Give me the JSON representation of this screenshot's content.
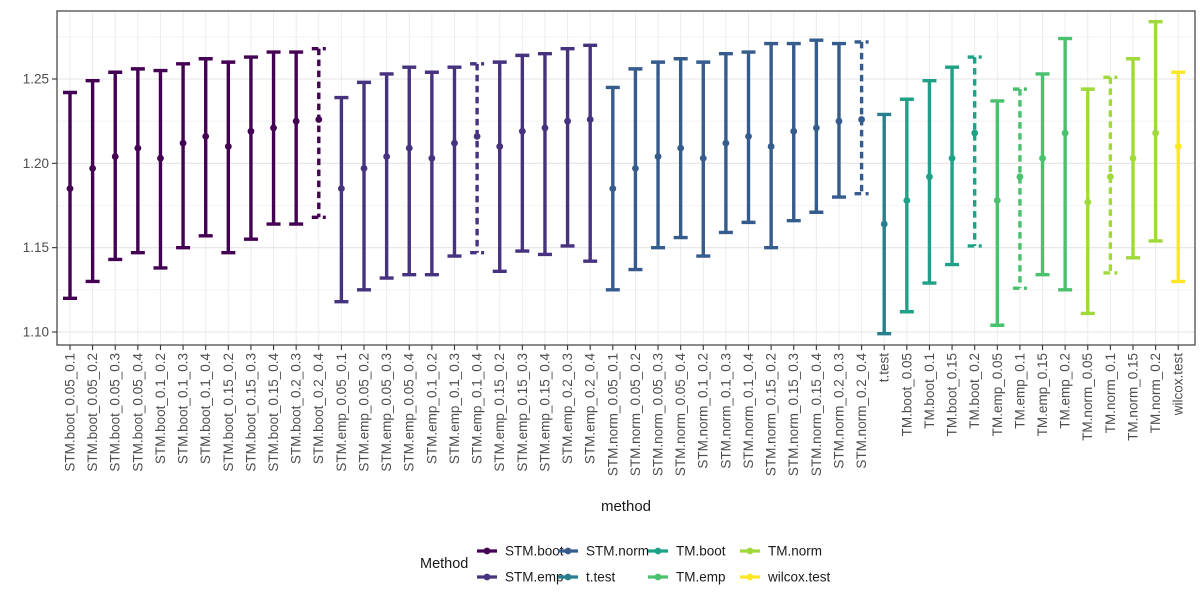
{
  "figure": {
    "background": "#FFFFFF"
  },
  "axes": {
    "x_title": "method",
    "y_major_ticks": [
      {
        "value": 1.1,
        "label": "1.10"
      },
      {
        "value": 1.15,
        "label": "1.15"
      },
      {
        "value": 1.2,
        "label": "1.20"
      },
      {
        "value": 1.25,
        "label": "1.25"
      }
    ],
    "y_minor_ticks": [
      1.125,
      1.175,
      1.225,
      1.275
    ]
  },
  "legend": {
    "title": "Method",
    "entries": [
      {
        "label": "STM.boot",
        "color": "#440154"
      },
      {
        "label": "STM.emp",
        "color": "#46327E"
      },
      {
        "label": "STM.norm",
        "color": "#365C8D"
      },
      {
        "label": "t.test",
        "color": "#277F8E"
      },
      {
        "label": "TM.boot",
        "color": "#1FA187"
      },
      {
        "label": "TM.emp",
        "color": "#4AC16D"
      },
      {
        "label": "TM.norm",
        "color": "#9FDA3A"
      },
      {
        "label": "wilcox.test",
        "color": "#FDE725"
      }
    ]
  },
  "chart_data": {
    "type": "pointrange",
    "title": "",
    "xlabel": "method",
    "ylabel": "",
    "ylim": [
      1.092,
      1.29
    ],
    "grid": true,
    "legend_position": "bottom",
    "groups": [
      {
        "name": "STM.boot",
        "color": "#440154"
      },
      {
        "name": "STM.emp",
        "color": "#46327E"
      },
      {
        "name": "STM.norm",
        "color": "#365C8D"
      },
      {
        "name": "t.test",
        "color": "#277F8E"
      },
      {
        "name": "TM.boot",
        "color": "#1FA187"
      },
      {
        "name": "TM.emp",
        "color": "#4AC16D"
      },
      {
        "name": "TM.norm",
        "color": "#9FDA3A"
      },
      {
        "name": "wilcox.test",
        "color": "#FDE725"
      }
    ],
    "points": [
      {
        "label": "STM.boot_0.05_0.1",
        "group": "STM.boot",
        "estimate": 1.185,
        "lower": 1.12,
        "upper": 1.242,
        "linetype": "solid"
      },
      {
        "label": "STM.boot_0.05_0.2",
        "group": "STM.boot",
        "estimate": 1.197,
        "lower": 1.13,
        "upper": 1.249,
        "linetype": "solid"
      },
      {
        "label": "STM.boot_0.05_0.3",
        "group": "STM.boot",
        "estimate": 1.204,
        "lower": 1.143,
        "upper": 1.254,
        "linetype": "solid"
      },
      {
        "label": "STM.boot_0.05_0.4",
        "group": "STM.boot",
        "estimate": 1.209,
        "lower": 1.147,
        "upper": 1.256,
        "linetype": "solid"
      },
      {
        "label": "STM.boot_0.1_0.2",
        "group": "STM.boot",
        "estimate": 1.203,
        "lower": 1.138,
        "upper": 1.255,
        "linetype": "solid"
      },
      {
        "label": "STM.boot_0.1_0.3",
        "group": "STM.boot",
        "estimate": 1.212,
        "lower": 1.15,
        "upper": 1.259,
        "linetype": "solid"
      },
      {
        "label": "STM.boot_0.1_0.4",
        "group": "STM.boot",
        "estimate": 1.216,
        "lower": 1.157,
        "upper": 1.262,
        "linetype": "solid"
      },
      {
        "label": "STM.boot_0.15_0.2",
        "group": "STM.boot",
        "estimate": 1.21,
        "lower": 1.147,
        "upper": 1.26,
        "linetype": "solid"
      },
      {
        "label": "STM.boot_0.15_0.3",
        "group": "STM.boot",
        "estimate": 1.219,
        "lower": 1.155,
        "upper": 1.263,
        "linetype": "solid"
      },
      {
        "label": "STM.boot_0.15_0.4",
        "group": "STM.boot",
        "estimate": 1.221,
        "lower": 1.164,
        "upper": 1.266,
        "linetype": "solid"
      },
      {
        "label": "STM.boot_0.2_0.3",
        "group": "STM.boot",
        "estimate": 1.225,
        "lower": 1.164,
        "upper": 1.266,
        "linetype": "solid"
      },
      {
        "label": "STM.boot_0.2_0.4",
        "group": "STM.boot",
        "estimate": 1.226,
        "lower": 1.168,
        "upper": 1.268,
        "linetype": "dashed"
      },
      {
        "label": "STM.emp_0.05_0.1",
        "group": "STM.emp",
        "estimate": 1.185,
        "lower": 1.118,
        "upper": 1.239,
        "linetype": "solid"
      },
      {
        "label": "STM.emp_0.05_0.2",
        "group": "STM.emp",
        "estimate": 1.197,
        "lower": 1.125,
        "upper": 1.248,
        "linetype": "solid"
      },
      {
        "label": "STM.emp_0.05_0.3",
        "group": "STM.emp",
        "estimate": 1.204,
        "lower": 1.132,
        "upper": 1.253,
        "linetype": "solid"
      },
      {
        "label": "STM.emp_0.05_0.4",
        "group": "STM.emp",
        "estimate": 1.209,
        "lower": 1.134,
        "upper": 1.257,
        "linetype": "solid"
      },
      {
        "label": "STM.emp_0.1_0.2",
        "group": "STM.emp",
        "estimate": 1.203,
        "lower": 1.134,
        "upper": 1.254,
        "linetype": "solid"
      },
      {
        "label": "STM.emp_0.1_0.3",
        "group": "STM.emp",
        "estimate": 1.212,
        "lower": 1.145,
        "upper": 1.257,
        "linetype": "solid"
      },
      {
        "label": "STM.emp_0.1_0.4",
        "group": "STM.emp",
        "estimate": 1.216,
        "lower": 1.147,
        "upper": 1.259,
        "linetype": "dashed"
      },
      {
        "label": "STM.emp_0.15_0.2",
        "group": "STM.emp",
        "estimate": 1.21,
        "lower": 1.136,
        "upper": 1.26,
        "linetype": "solid"
      },
      {
        "label": "STM.emp_0.15_0.3",
        "group": "STM.emp",
        "estimate": 1.219,
        "lower": 1.148,
        "upper": 1.264,
        "linetype": "solid"
      },
      {
        "label": "STM.emp_0.15_0.4",
        "group": "STM.emp",
        "estimate": 1.221,
        "lower": 1.146,
        "upper": 1.265,
        "linetype": "solid"
      },
      {
        "label": "STM.emp_0.2_0.3",
        "group": "STM.emp",
        "estimate": 1.225,
        "lower": 1.151,
        "upper": 1.268,
        "linetype": "solid"
      },
      {
        "label": "STM.emp_0.2_0.4",
        "group": "STM.emp",
        "estimate": 1.226,
        "lower": 1.142,
        "upper": 1.27,
        "linetype": "solid"
      },
      {
        "label": "STM.norm_0.05_0.1",
        "group": "STM.norm",
        "estimate": 1.185,
        "lower": 1.125,
        "upper": 1.245,
        "linetype": "solid"
      },
      {
        "label": "STM.norm_0.05_0.2",
        "group": "STM.norm",
        "estimate": 1.197,
        "lower": 1.137,
        "upper": 1.256,
        "linetype": "solid"
      },
      {
        "label": "STM.norm_0.05_0.3",
        "group": "STM.norm",
        "estimate": 1.204,
        "lower": 1.15,
        "upper": 1.26,
        "linetype": "solid"
      },
      {
        "label": "STM.norm_0.05_0.4",
        "group": "STM.norm",
        "estimate": 1.209,
        "lower": 1.156,
        "upper": 1.262,
        "linetype": "solid"
      },
      {
        "label": "STM.norm_0.1_0.2",
        "group": "STM.norm",
        "estimate": 1.203,
        "lower": 1.145,
        "upper": 1.26,
        "linetype": "solid"
      },
      {
        "label": "STM.norm_0.1_0.3",
        "group": "STM.norm",
        "estimate": 1.212,
        "lower": 1.159,
        "upper": 1.265,
        "linetype": "solid"
      },
      {
        "label": "STM.norm_0.1_0.4",
        "group": "STM.norm",
        "estimate": 1.216,
        "lower": 1.165,
        "upper": 1.266,
        "linetype": "solid"
      },
      {
        "label": "STM.norm_0.15_0.2",
        "group": "STM.norm",
        "estimate": 1.21,
        "lower": 1.15,
        "upper": 1.271,
        "linetype": "solid"
      },
      {
        "label": "STM.norm_0.15_0.3",
        "group": "STM.norm",
        "estimate": 1.219,
        "lower": 1.166,
        "upper": 1.271,
        "linetype": "solid"
      },
      {
        "label": "STM.norm_0.15_0.4",
        "group": "STM.norm",
        "estimate": 1.221,
        "lower": 1.171,
        "upper": 1.273,
        "linetype": "solid"
      },
      {
        "label": "STM.norm_0.2_0.3",
        "group": "STM.norm",
        "estimate": 1.225,
        "lower": 1.18,
        "upper": 1.271,
        "linetype": "solid"
      },
      {
        "label": "STM.norm_0.2_0.4",
        "group": "STM.norm",
        "estimate": 1.226,
        "lower": 1.182,
        "upper": 1.272,
        "linetype": "dashed"
      },
      {
        "label": "t.test",
        "group": "t.test",
        "estimate": 1.164,
        "lower": 1.099,
        "upper": 1.229,
        "linetype": "solid"
      },
      {
        "label": "TM.boot_0.05",
        "group": "TM.boot",
        "estimate": 1.178,
        "lower": 1.112,
        "upper": 1.238,
        "linetype": "solid"
      },
      {
        "label": "TM.boot_0.1",
        "group": "TM.boot",
        "estimate": 1.192,
        "lower": 1.129,
        "upper": 1.249,
        "linetype": "solid"
      },
      {
        "label": "TM.boot_0.15",
        "group": "TM.boot",
        "estimate": 1.203,
        "lower": 1.14,
        "upper": 1.257,
        "linetype": "solid"
      },
      {
        "label": "TM.boot_0.2",
        "group": "TM.boot",
        "estimate": 1.218,
        "lower": 1.151,
        "upper": 1.263,
        "linetype": "dashed"
      },
      {
        "label": "TM.emp_0.05",
        "group": "TM.emp",
        "estimate": 1.178,
        "lower": 1.104,
        "upper": 1.237,
        "linetype": "solid"
      },
      {
        "label": "TM.emp_0.1",
        "group": "TM.emp",
        "estimate": 1.192,
        "lower": 1.126,
        "upper": 1.244,
        "linetype": "dashed"
      },
      {
        "label": "TM.emp_0.15",
        "group": "TM.emp",
        "estimate": 1.203,
        "lower": 1.134,
        "upper": 1.253,
        "linetype": "solid"
      },
      {
        "label": "TM.emp_0.2",
        "group": "TM.emp",
        "estimate": 1.218,
        "lower": 1.125,
        "upper": 1.274,
        "linetype": "solid"
      },
      {
        "label": "TM.norm_0.05",
        "group": "TM.norm",
        "estimate": 1.177,
        "lower": 1.111,
        "upper": 1.244,
        "linetype": "solid"
      },
      {
        "label": "TM.norm_0.1",
        "group": "TM.norm",
        "estimate": 1.192,
        "lower": 1.135,
        "upper": 1.251,
        "linetype": "dashed"
      },
      {
        "label": "TM.norm_0.15",
        "group": "TM.norm",
        "estimate": 1.203,
        "lower": 1.144,
        "upper": 1.262,
        "linetype": "solid"
      },
      {
        "label": "TM.norm_0.2",
        "group": "TM.norm",
        "estimate": 1.218,
        "lower": 1.154,
        "upper": 1.284,
        "linetype": "solid"
      },
      {
        "label": "wilcox.test",
        "group": "wilcox.test",
        "estimate": 1.21,
        "lower": 1.13,
        "upper": 1.254,
        "linetype": "solid"
      }
    ]
  }
}
